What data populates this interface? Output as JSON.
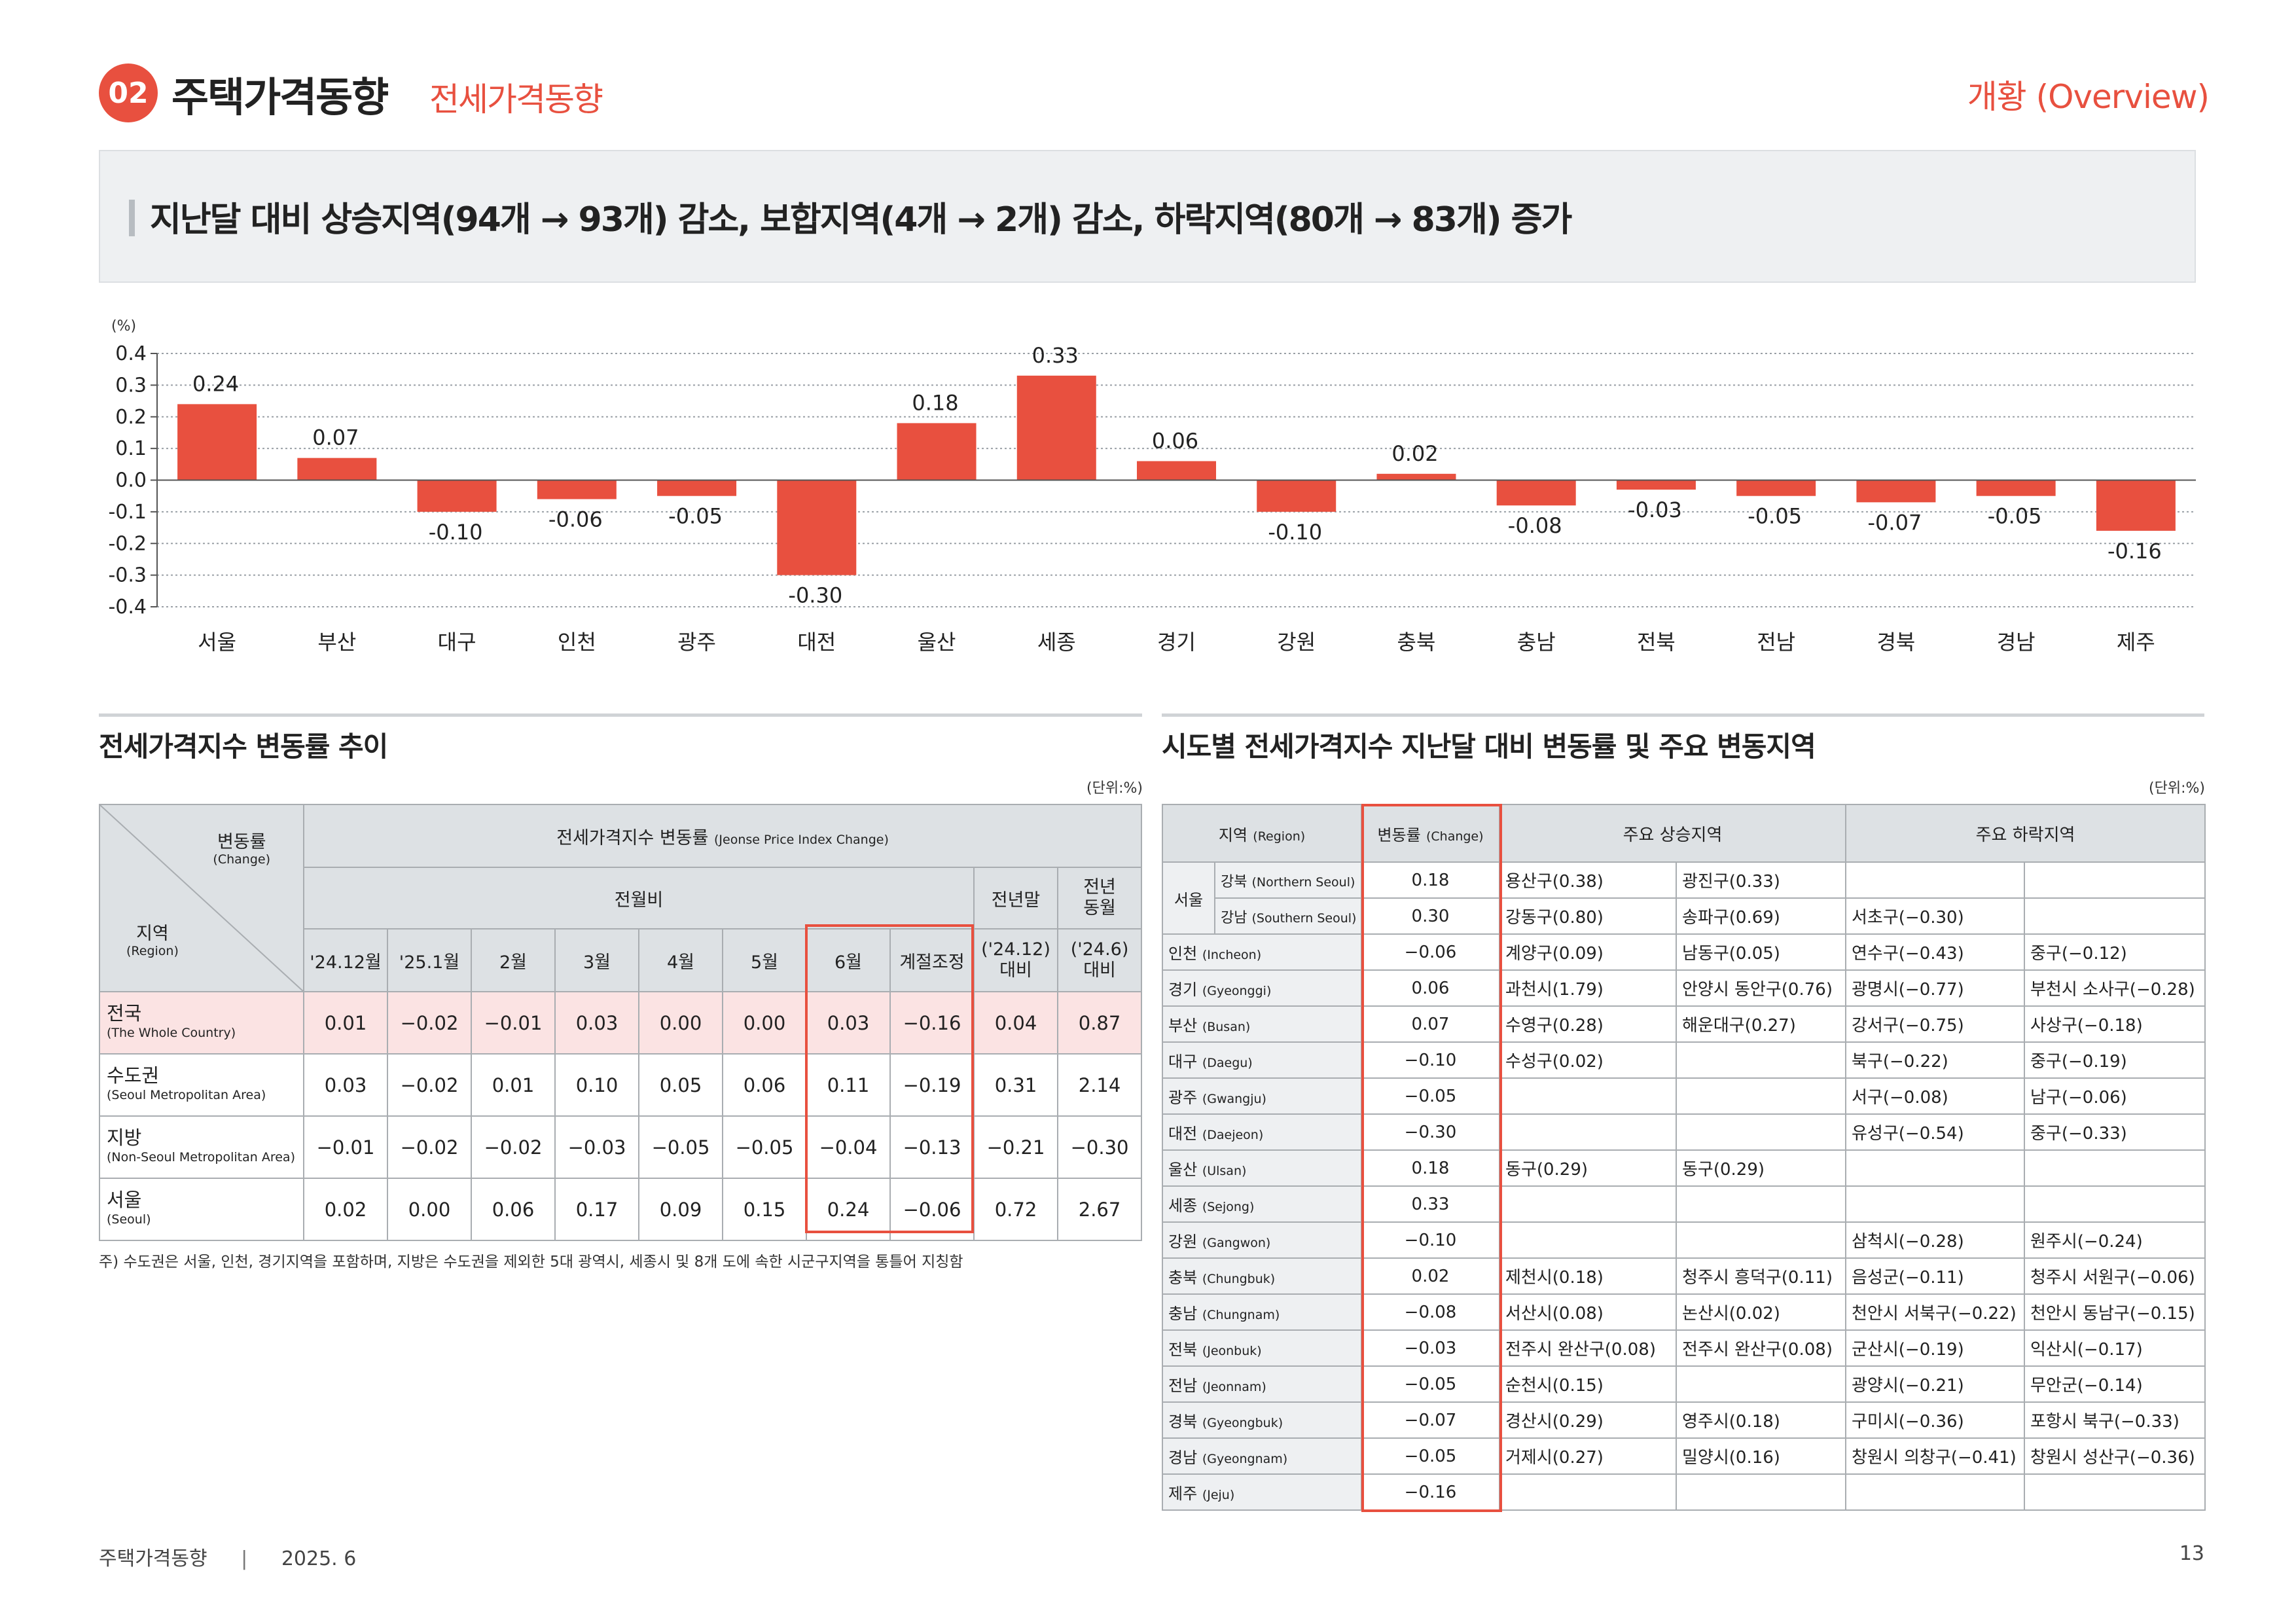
{
  "header": {
    "section_num": "02",
    "title": "주택가격동향",
    "subtitle": "전세가격동향",
    "right_label": "개황 (Overview)"
  },
  "summary": "지난달 대비 상승지역(94개 → 93개) 감소, 보합지역(4개 → 2개) 감소, 하락지역(80개 → 83개) 증가",
  "chart_data": {
    "type": "bar",
    "ylabel": "(%)",
    "ylim": [
      -0.4,
      0.4
    ],
    "yticks": [
      "0.4",
      "0.3",
      "0.2",
      "0.1",
      "0.0",
      "-0.1",
      "-0.2",
      "-0.3",
      "-0.4"
    ],
    "categories": [
      "서울",
      "부산",
      "대구",
      "인천",
      "광주",
      "대전",
      "울산",
      "세종",
      "경기",
      "강원",
      "충북",
      "충남",
      "전북",
      "전남",
      "경북",
      "경남",
      "제주"
    ],
    "values": [
      0.24,
      0.07,
      -0.1,
      -0.06,
      -0.05,
      -0.3,
      0.18,
      0.33,
      0.06,
      -0.1,
      0.02,
      -0.08,
      -0.03,
      -0.05,
      -0.07,
      -0.05,
      -0.16
    ],
    "labels": [
      "0.24",
      "0.07",
      "-0.10",
      "-0.06",
      "-0.05",
      "-0.30",
      "0.18",
      "0.33",
      "0.06",
      "-0.10",
      "0.02",
      "-0.08",
      "-0.03",
      "-0.05",
      "-0.07",
      "-0.05",
      "-0.16"
    ],
    "bar_color": "#e8503f"
  },
  "left": {
    "title": "전세가격지수 변동률 추이",
    "unit": "(단위:%)",
    "corner_top": "변동률",
    "corner_top_en": "(Change)",
    "corner_bottom": "지역",
    "corner_bottom_en": "(Region)",
    "group_header": "전세가격지수 변동률",
    "group_header_en": "(Jeonse Price Index Change)",
    "mom_header": "전월비",
    "ytd_header": "전년말",
    "yoy_header": "전년\n동월",
    "columns": [
      "'24.12월",
      "'25.1월",
      "2월",
      "3월",
      "4월",
      "5월",
      "6월",
      "계절조정"
    ],
    "ytd_sub": "('24.12)\n대비",
    "yoy_sub": "('24.6)\n대비",
    "rows": [
      {
        "name": "전국",
        "en": "(The Whole Country)",
        "values": [
          "0.01",
          "−0.02",
          "−0.01",
          "0.03",
          "0.00",
          "0.00",
          "0.03",
          "−0.16",
          "0.04",
          "0.87"
        ]
      },
      {
        "name": "수도권",
        "en": "(Seoul Metropolitan Area)",
        "values": [
          "0.03",
          "−0.02",
          "0.01",
          "0.10",
          "0.05",
          "0.06",
          "0.11",
          "−0.19",
          "0.31",
          "2.14"
        ]
      },
      {
        "name": "지방",
        "en": "(Non-Seoul Metropolitan Area)",
        "values": [
          "−0.01",
          "−0.02",
          "−0.02",
          "−0.03",
          "−0.05",
          "−0.05",
          "−0.04",
          "−0.13",
          "−0.21",
          "−0.30"
        ]
      },
      {
        "name": "서울",
        "en": "(Seoul)",
        "values": [
          "0.02",
          "0.00",
          "0.06",
          "0.17",
          "0.09",
          "0.15",
          "0.24",
          "−0.06",
          "0.72",
          "2.67"
        ]
      }
    ],
    "note": "주) 수도권은 서울, 인천, 경기지역을 포함하며, 지방은 수도권을 제외한 5대 광역시, 세종시 및 8개 도에 속한 시군구지역을 통틀어 지칭함"
  },
  "right": {
    "title": "시도별 전세가격지수 지난달 대비 변동률 및 주요 변동지역",
    "unit": "(단위:%)",
    "h_region": "지역",
    "h_region_en": "(Region)",
    "h_change": "변동률",
    "h_change_en": "(Change)",
    "h_up": "주요 상승지역",
    "h_down": "주요 하락지역",
    "seoul_label": "서울",
    "seoul_rows": [
      {
        "name": "강북",
        "en": "(Northern Seoul)",
        "change": "0.18",
        "up1": "용산구(0.38)",
        "up2": "광진구(0.33)",
        "dn1": "",
        "dn2": ""
      },
      {
        "name": "강남",
        "en": "(Southern Seoul)",
        "change": "0.30",
        "up1": "강동구(0.80)",
        "up2": "송파구(0.69)",
        "dn1": "서초구(−0.30)",
        "dn2": ""
      }
    ],
    "rows": [
      {
        "name": "인천",
        "en": "(Incheon)",
        "change": "−0.06",
        "up1": "계양구(0.09)",
        "up2": "남동구(0.05)",
        "dn1": "연수구(−0.43)",
        "dn2": "중구(−0.12)"
      },
      {
        "name": "경기",
        "en": "(Gyeonggi)",
        "change": "0.06",
        "up1": "과천시(1.79)",
        "up2": "안양시 동안구(0.76)",
        "dn1": "광명시(−0.77)",
        "dn2": "부천시 소사구(−0.28)"
      },
      {
        "name": "부산",
        "en": "(Busan)",
        "change": "0.07",
        "up1": "수영구(0.28)",
        "up2": "해운대구(0.27)",
        "dn1": "강서구(−0.75)",
        "dn2": "사상구(−0.18)"
      },
      {
        "name": "대구",
        "en": "(Daegu)",
        "change": "−0.10",
        "up1": "수성구(0.02)",
        "up2": "",
        "dn1": "북구(−0.22)",
        "dn2": "중구(−0.19)"
      },
      {
        "name": "광주",
        "en": "(Gwangju)",
        "change": "−0.05",
        "up1": "",
        "up2": "",
        "dn1": "서구(−0.08)",
        "dn2": "남구(−0.06)"
      },
      {
        "name": "대전",
        "en": "(Daejeon)",
        "change": "−0.30",
        "up1": "",
        "up2": "",
        "dn1": "유성구(−0.54)",
        "dn2": "중구(−0.33)"
      },
      {
        "name": "울산",
        "en": "(Ulsan)",
        "change": "0.18",
        "up1": "동구(0.29)",
        "up2": "동구(0.29)",
        "dn1": "",
        "dn2": ""
      },
      {
        "name": "세종",
        "en": "(Sejong)",
        "change": "0.33",
        "up1": "",
        "up2": "",
        "dn1": "",
        "dn2": ""
      },
      {
        "name": "강원",
        "en": "(Gangwon)",
        "change": "−0.10",
        "up1": "",
        "up2": "",
        "dn1": "삼척시(−0.28)",
        "dn2": "원주시(−0.24)"
      },
      {
        "name": "충북",
        "en": "(Chungbuk)",
        "change": "0.02",
        "up1": "제천시(0.18)",
        "up2": "청주시 흥덕구(0.11)",
        "dn1": "음성군(−0.11)",
        "dn2": "청주시 서원구(−0.06)"
      },
      {
        "name": "충남",
        "en": "(Chungnam)",
        "change": "−0.08",
        "up1": "서산시(0.08)",
        "up2": "논산시(0.02)",
        "dn1": "천안시 서북구(−0.22)",
        "dn2": "천안시 동남구(−0.15)"
      },
      {
        "name": "전북",
        "en": "(Jeonbuk)",
        "change": "−0.03",
        "up1": "전주시 완산구(0.08)",
        "up2": "전주시 완산구(0.08)",
        "dn1": "군산시(−0.19)",
        "dn2": "익산시(−0.17)"
      },
      {
        "name": "전남",
        "en": "(Jeonnam)",
        "change": "−0.05",
        "up1": "순천시(0.15)",
        "up2": "",
        "dn1": "광양시(−0.21)",
        "dn2": "무안군(−0.14)"
      },
      {
        "name": "경북",
        "en": "(Gyeongbuk)",
        "change": "−0.07",
        "up1": "경산시(0.29)",
        "up2": "영주시(0.18)",
        "dn1": "구미시(−0.36)",
        "dn2": "포항시 북구(−0.33)"
      },
      {
        "name": "경남",
        "en": "(Gyeongnam)",
        "change": "−0.05",
        "up1": "거제시(0.27)",
        "up2": "밀양시(0.16)",
        "dn1": "창원시 의창구(−0.41)",
        "dn2": "창원시 성산구(−0.36)"
      },
      {
        "name": "제주",
        "en": "(Jeju)",
        "change": "−0.16",
        "up1": "",
        "up2": "",
        "dn1": "",
        "dn2": ""
      }
    ]
  },
  "footer": {
    "left": "주택가격동향",
    "sep": "|",
    "date": "2025. 6",
    "page": "13"
  }
}
